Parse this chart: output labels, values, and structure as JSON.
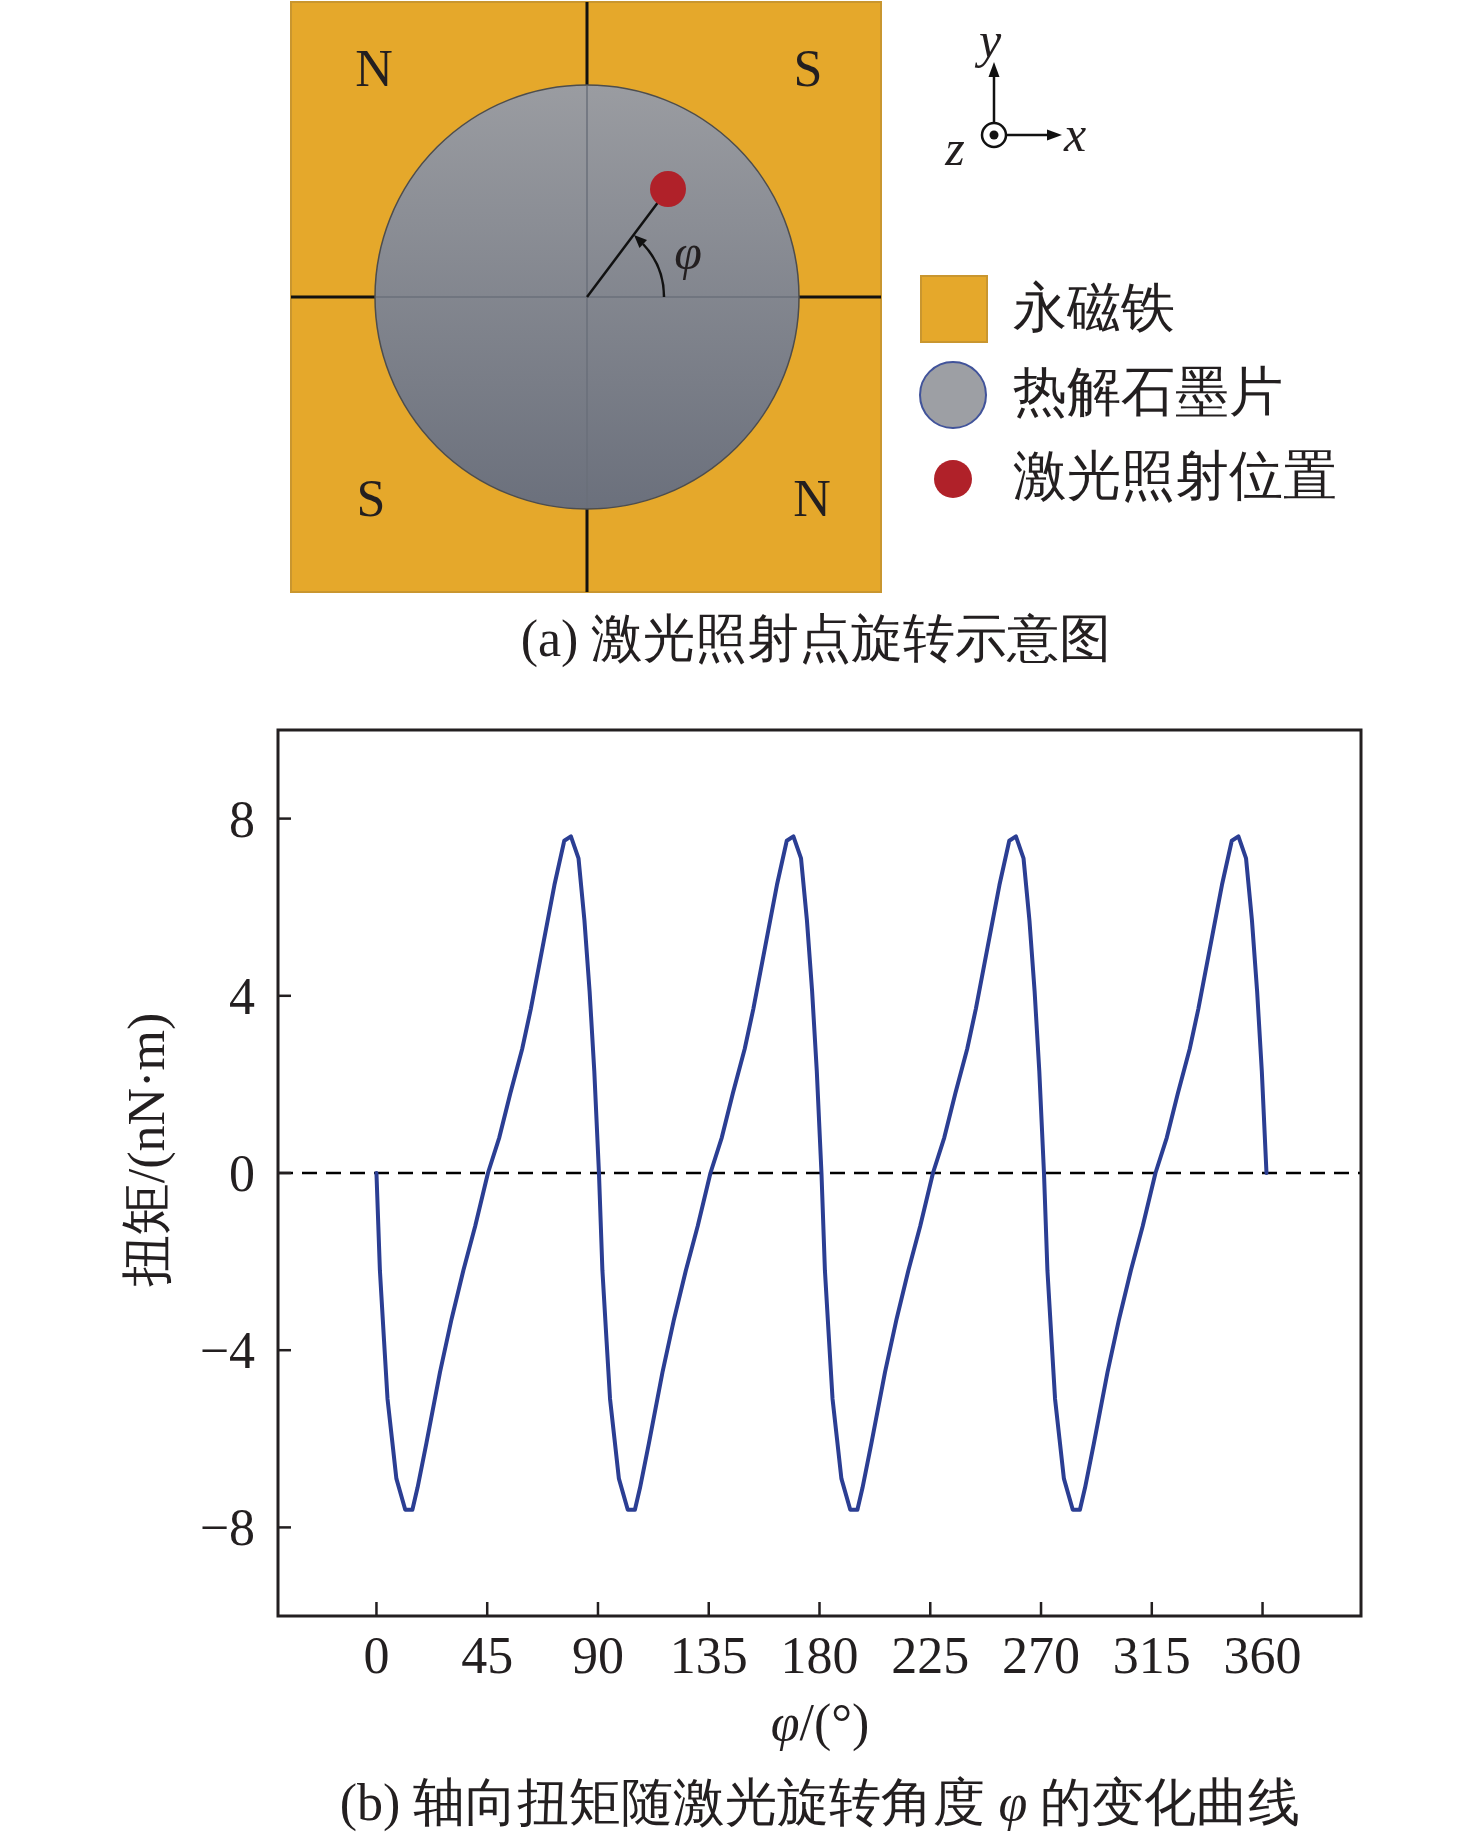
{
  "chart_data": [
    {
      "type": "other",
      "title": "(a) 激光照射点旋转示意图",
      "annotations": [
        "N",
        "S",
        "S",
        "N",
        "y",
        "z",
        "x",
        "φ",
        "永磁铁",
        "热解石墨片",
        "激光照射位置"
      ]
    },
    {
      "type": "line",
      "title": "(b) 轴向扭矩随激光旋转角度 *φ* 的变化曲线",
      "xlabel": "*φ*/(°)",
      "ylabel": "扭矩/(nN·m)",
      "x": [
        0,
        1.4,
        3.1,
        4.5,
        6.3,
        8.1,
        11.7,
        14.6,
        16.7,
        20.3,
        25.8,
        30.5,
        35.3,
        40.1,
        45.3,
        49.9,
        54.4,
        59.2,
        62.7,
        67.5,
        72.3,
        76.3,
        79.0,
        82.1,
        84.5,
        86.6,
        88.5,
        90.4,
        91.8,
        93.5,
        94.9,
        96.7,
        98.5,
        102.1,
        105.0,
        107.1,
        110.7,
        116.2,
        120.9,
        125.7,
        130.5,
        135.7,
        140.3,
        144.8,
        149.6,
        153.1,
        157.9,
        162.7,
        166.7,
        169.4,
        172.5,
        174.9,
        177.0,
        178.9,
        180.8,
        182.2,
        183.9,
        185.3,
        187.1,
        188.9,
        192.5,
        195.4,
        197.5,
        201.1,
        206.6,
        211.3,
        216.1,
        220.9,
        226.1,
        230.7,
        235.2,
        240.0,
        243.5,
        248.3,
        253.1,
        257.1,
        259.8,
        262.9,
        265.3,
        267.4,
        269.3,
        271.2,
        272.6,
        274.3,
        275.7,
        277.5,
        279.3,
        282.9,
        285.8,
        287.9,
        291.5,
        297.0,
        301.7,
        306.5,
        311.3,
        316.5,
        321.1,
        325.6,
        330.4,
        333.9,
        338.7,
        343.5,
        347.5,
        350.2,
        353.3,
        355.7,
        357.8,
        359.7,
        361.6
      ],
      "series": [
        {
          "color": "#2b3e93",
          "values": [
            0,
            -2.2,
            -3.8,
            -5.1,
            -6.0,
            -6.9,
            -7.6,
            -7.6,
            -7.1,
            -6.1,
            -4.5,
            -3.3,
            -2.2,
            -1.2,
            0,
            0.8,
            1.8,
            2.8,
            3.7,
            5.1,
            6.5,
            7.5,
            7.6,
            7.1,
            5.7,
            4.1,
            2.3,
            0,
            -2.2,
            -3.8,
            -5.1,
            -6.0,
            -6.9,
            -7.6,
            -7.6,
            -7.1,
            -6.1,
            -4.5,
            -3.3,
            -2.2,
            -1.2,
            0,
            0.8,
            1.8,
            2.8,
            3.7,
            5.1,
            6.5,
            7.5,
            7.6,
            7.1,
            5.7,
            4.1,
            2.3,
            0,
            -2.2,
            -3.8,
            -5.1,
            -6.0,
            -6.9,
            -7.6,
            -7.6,
            -7.1,
            -6.1,
            -4.5,
            -3.3,
            -2.2,
            -1.2,
            0,
            0.8,
            1.8,
            2.8,
            3.7,
            5.1,
            6.5,
            7.5,
            7.6,
            7.1,
            5.7,
            4.1,
            2.3,
            0,
            -2.2,
            -3.8,
            -5.1,
            -6.0,
            -6.9,
            -7.6,
            -7.6,
            -7.1,
            -6.1,
            -4.5,
            -3.3,
            -2.2,
            -1.2,
            0,
            0.8,
            1.8,
            2.8,
            3.7,
            5.1,
            6.5,
            7.5,
            7.6,
            7.1,
            5.7,
            4.1,
            2.3,
            0
          ]
        }
      ],
      "xlim": [
        -40,
        400
      ],
      "ylim": [
        -10,
        10
      ],
      "xticks": [
        0,
        45,
        90,
        135,
        180,
        225,
        270,
        315,
        360
      ],
      "yticks": [
        -8,
        -4,
        0,
        4,
        8
      ],
      "ref_lines": [
        {
          "axis": "y",
          "value": 0,
          "color": "#000000",
          "line_style": "dashed"
        }
      ]
    }
  ]
}
